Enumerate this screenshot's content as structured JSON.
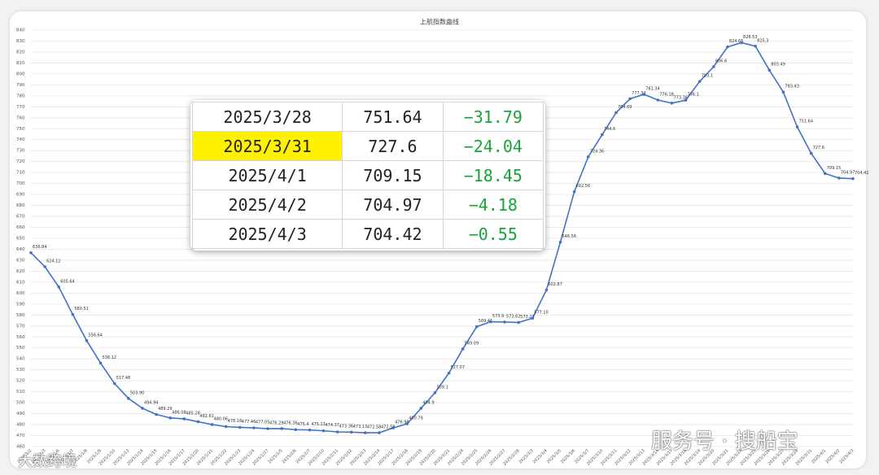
{
  "chart_data": {
    "type": "line",
    "title": "上航指数曲线",
    "categories": [
      "2025/1/2",
      "2025/1/3",
      "2025/1/6",
      "2025/1/7",
      "2025/1/8",
      "2025/1/9",
      "2025/1/10",
      "2025/1/13",
      "2025/1/14",
      "2025/1/15",
      "2025/1/16",
      "2025/1/17",
      "2025/1/20",
      "2025/1/21",
      "2025/1/22",
      "2025/1/23",
      "2025/1/24",
      "2025/1/27",
      "2025/2/5",
      "2025/2/6",
      "2025/2/7",
      "2025/2/10",
      "2025/2/11",
      "2025/2/12",
      "2025/2/13",
      "2025/2/14",
      "2025/2/17",
      "2025/2/18",
      "2025/2/19",
      "2025/2/20",
      "2025/2/21",
      "2025/2/24",
      "2025/2/25",
      "2025/2/26",
      "2025/2/27",
      "2025/2/28",
      "2025/3/3",
      "2025/3/4",
      "2025/3/5",
      "2025/3/6",
      "2025/3/7",
      "2025/3/10",
      "2025/3/11",
      "2025/3/12",
      "2025/3/13",
      "2025/3/14",
      "2025/3/17",
      "2025/3/18",
      "2025/3/19",
      "2025/3/20",
      "2025/3/21",
      "2025/3/24",
      "2025/3/25",
      "2025/3/26",
      "2025/3/27",
      "2025/3/28",
      "2025/3/31",
      "2025/4/1",
      "2025/4/2",
      "2025/4/3"
    ],
    "values": [
      636.84,
      624.12,
      605.64,
      580.51,
      556.64,
      536.12,
      517.48,
      503.9,
      494.94,
      489.29,
      486.08,
      485.28,
      482.61,
      480.06,
      478.18,
      477.46,
      477.05,
      476.29,
      476.36,
      475.4,
      475.13,
      474.37,
      473.36,
      473.13,
      472.58,
      472.58,
      476.98,
      480.79,
      494.9,
      509.1,
      527.07,
      549.09,
      569.41,
      573.9,
      573.62,
      573.23,
      577.1,
      602.87,
      646.56,
      692.56,
      724.36,
      744.6,
      764.69,
      777.34,
      781.34,
      776.18,
      773.36,
      776.1,
      793.1,
      806.6,
      824.65,
      828.53,
      825.3,
      803.49,
      783.43,
      751.64,
      727.6,
      709.15,
      704.97,
      704.42
    ],
    "value_labels": [
      "636.84",
      "624.12",
      "605.64",
      "580.51",
      "556.64",
      "536.12",
      "517.48",
      "503.90",
      "494.94",
      "489.29",
      "486.08",
      "485.28",
      "482.61",
      "480.06",
      "478.18",
      "477.46",
      "477.05",
      "476.29",
      "476.36",
      "475.4",
      "475.13",
      "474.37",
      "473.36",
      "473.13",
      "472.58",
      "472.58",
      "476.98",
      "480.79",
      "494.9",
      "509.1",
      "527.07",
      "549.09",
      "569.41",
      "573.9",
      "573.62",
      "573.23",
      "577.10",
      "602.87",
      "646.56",
      "692.56",
      "724.36",
      "744.6",
      "764.69",
      "777.34",
      "781.34",
      "776.18",
      "773.36",
      "776.1",
      "793.1",
      "806.6",
      "824.65",
      "828.53",
      "825.3",
      "803.49",
      "783.43",
      "751.64",
      "727.6",
      "709.15",
      "704.97",
      "704.42"
    ],
    "color": "#4472c4",
    "ylim": [
      460,
      840
    ],
    "yticks": [
      460,
      470,
      480,
      490,
      500,
      510,
      520,
      530,
      540,
      550,
      560,
      570,
      580,
      590,
      600,
      610,
      620,
      630,
      640,
      650,
      660,
      670,
      680,
      690,
      700,
      710,
      720,
      730,
      740,
      750,
      760,
      770,
      780,
      790,
      800,
      810,
      820,
      830,
      840
    ],
    "grid": true
  },
  "table": {
    "rows": [
      [
        "2025/3/28",
        "751.64",
        "−31.79"
      ],
      [
        "2025/3/31",
        "727.6",
        "−24.04"
      ],
      [
        "2025/4/1",
        "709.15",
        "−18.45"
      ],
      [
        "2025/4/2",
        "704.97",
        "−4.18"
      ],
      [
        "2025/4/3",
        "704.42",
        "−0.55"
      ]
    ]
  },
  "watermarks": {
    "left": "大数跨境",
    "right": "服务号 · 搜船宝"
  }
}
